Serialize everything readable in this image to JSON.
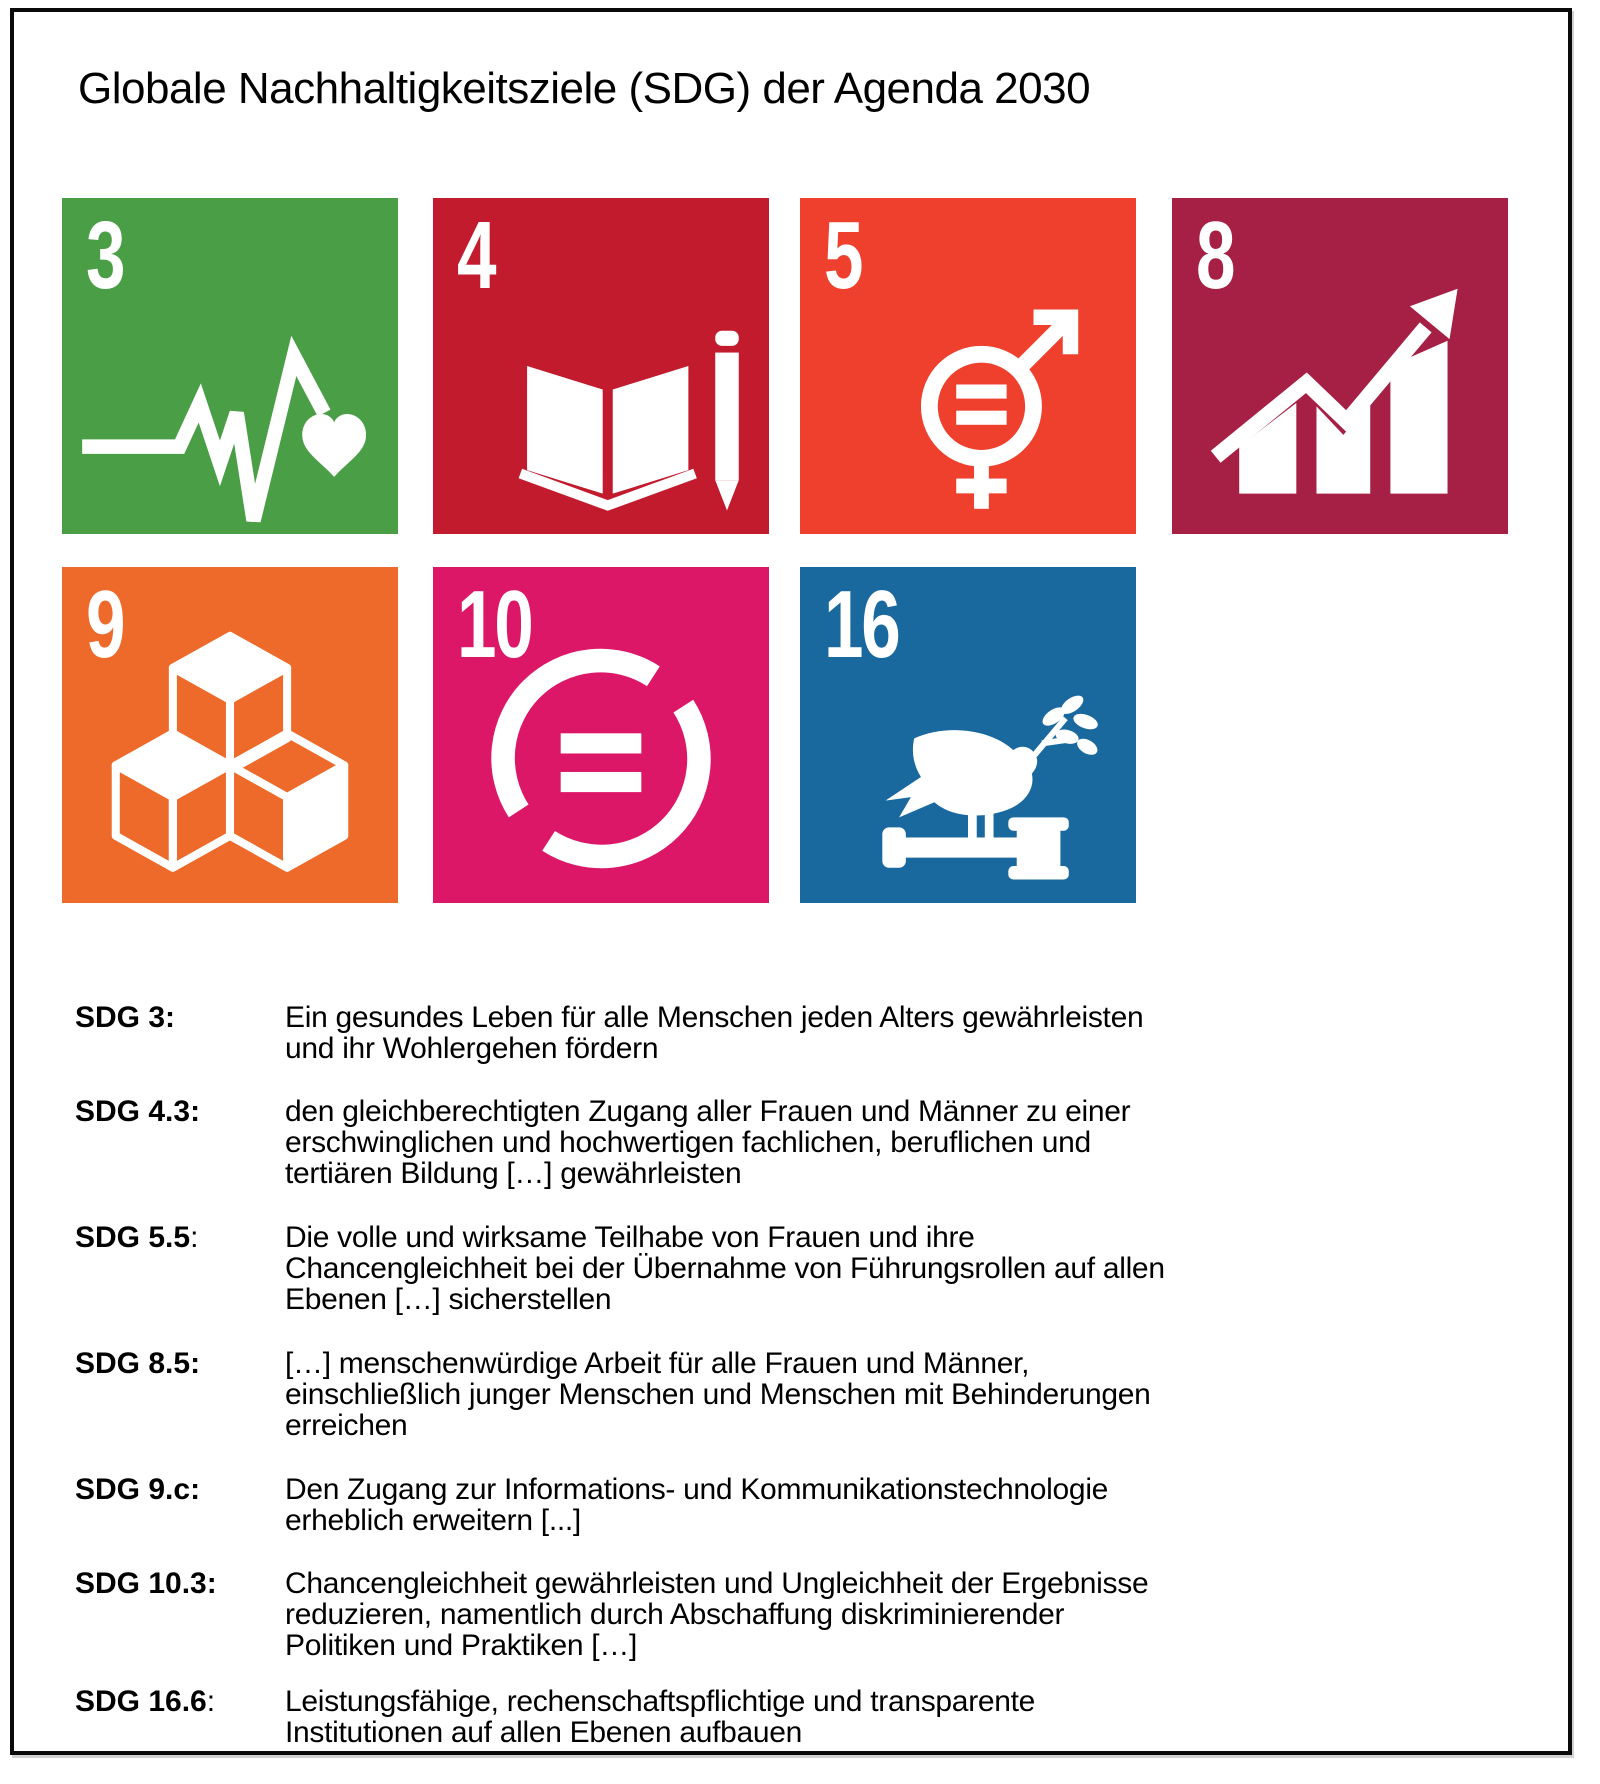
{
  "title": "Globale Nachhaltigkeitsziele (SDG) der Agenda 2030",
  "tiles": [
    {
      "number": "3",
      "color": "#4A9E45",
      "icon": "heartbeat-heart-icon"
    },
    {
      "number": "4",
      "color": "#C21B2E",
      "icon": "open-book-pencil-icon"
    },
    {
      "number": "5",
      "color": "#EF402D",
      "icon": "gender-equality-icon"
    },
    {
      "number": "8",
      "color": "#A52044",
      "icon": "growth-chart-arrow-icon"
    },
    {
      "number": "9",
      "color": "#ED6A2B",
      "icon": "building-blocks-icon"
    },
    {
      "number": "10",
      "color": "#DC1768",
      "icon": "equality-circle-icon"
    },
    {
      "number": "16",
      "color": "#1A699E",
      "icon": "dove-gavel-icon"
    }
  ],
  "entries": [
    {
      "label": "SDG 3",
      "colon": ":",
      "colon_bold": true,
      "text": "Ein gesundes Leben für alle Menschen jeden Alters gewährleisten\nund ihr Wohlergehen fördern"
    },
    {
      "label": "SDG 4.3",
      "colon": ":",
      "colon_bold": true,
      "text": "den gleichberechtigten Zugang aller Frauen und Männer zu einer\nerschwinglichen und hochwertigen fachlichen, beruflichen und\ntertiären Bildung […] gewährleisten"
    },
    {
      "label": "SDG 5.5",
      "colon": ":",
      "colon_bold": false,
      "text": "Die volle und wirksame Teilhabe von Frauen und ihre\nChancengleichheit bei der Übernahme von Führungsrollen auf allen\nEbenen […] sicherstellen"
    },
    {
      "label": "SDG 8.5",
      "colon": ":",
      "colon_bold": true,
      "text": "[…] menschenwürdige Arbeit für alle Frauen und Männer,\neinschließlich junger Menschen und Menschen mit Behinderungen\nerreichen"
    },
    {
      "label": "SDG 9.c",
      "colon": ":",
      "colon_bold": true,
      "text": "Den Zugang zur Informations- und Kommunikationstechnologie\nerheblich erweitern [...]"
    },
    {
      "label": "SDG 10.3",
      "colon": ":",
      "colon_bold": true,
      "text": "Chancengleichheit gewährleisten und Ungleichheit der Ergebnisse\nreduzieren, namentlich durch Abschaffung diskriminierender\nPolitiken und Praktiken […]"
    },
    {
      "label": "SDG 16.6",
      "colon": ":",
      "colon_bold": false,
      "text": "Leistungsfähige, rechenschaftspflichtige und transparente\nInstitutionen auf allen Ebenen aufbauen"
    }
  ]
}
